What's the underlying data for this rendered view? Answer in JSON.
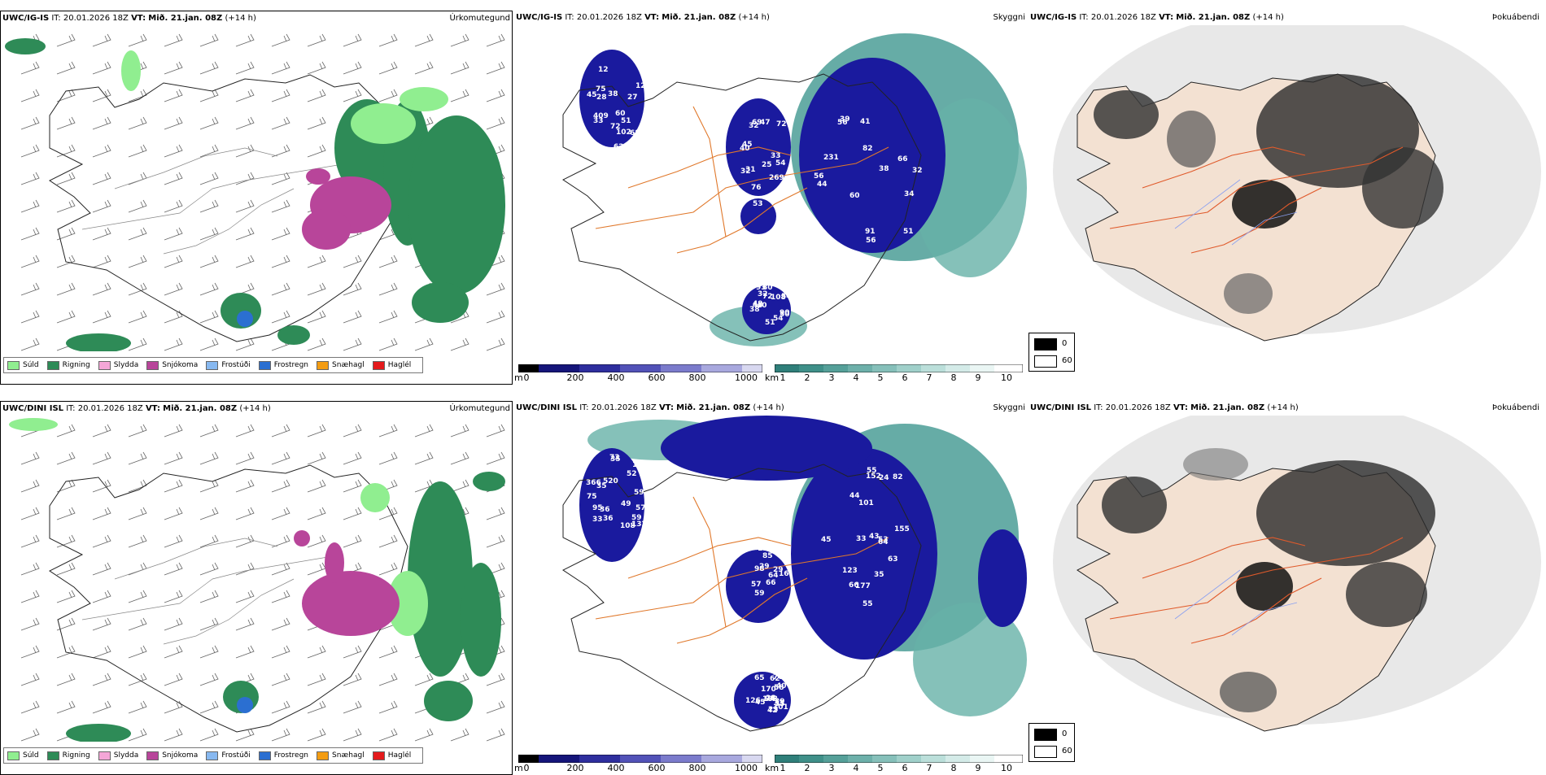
{
  "rows": [
    {
      "model": "UWC/IG-IS",
      "it_label": "IT:",
      "it_value": "20.01.2026 18Z",
      "vt_label": "VT:",
      "vt_value": "Mið. 21.jan. 08Z",
      "lead": "(+14 h)"
    },
    {
      "model": "UWC/DINI ISL",
      "it_label": "IT:",
      "it_value": "20.01.2026 18Z",
      "vt_label": "VT:",
      "vt_value": "Mið. 21.jan. 08Z",
      "lead": "(+14 h)"
    }
  ],
  "panel_names": {
    "precip": "Úrkomutegund",
    "cloud": "Skyggni",
    "fog": "Þokuábendi"
  },
  "precip_legend": [
    {
      "label": "Súld",
      "color": "#90ee90"
    },
    {
      "label": "Rigning",
      "color": "#2e8b57"
    },
    {
      "label": "Slydda",
      "color": "#f4a6d7"
    },
    {
      "label": "Snjókoma",
      "color": "#b8459a"
    },
    {
      "label": "Frostúði",
      "color": "#87b8f0"
    },
    {
      "label": "Frostregn",
      "color": "#2b6fd1"
    },
    {
      "label": "Snæhagl",
      "color": "#f39c12"
    },
    {
      "label": "Haglél",
      "color": "#e41a1c"
    }
  ],
  "ceiling_bar": {
    "unit": "m",
    "ticks": [
      "0",
      "200",
      "400",
      "600",
      "800",
      "1000"
    ]
  },
  "visibility_bar": {
    "unit": "km",
    "ticks": [
      "1",
      "2",
      "3",
      "4",
      "5",
      "6",
      "7",
      "8",
      "9",
      "10"
    ]
  },
  "fog_legend": {
    "low": "0",
    "high": "60"
  },
  "cloud_labels_top": [
    "231",
    "269",
    "409",
    "90",
    "56",
    "53",
    "38",
    "49",
    "41",
    "40",
    "60",
    "54",
    "34",
    "33",
    "33",
    "32",
    "51",
    "31",
    "28",
    "54",
    "60",
    "36",
    "62",
    "45",
    "39",
    "47",
    "51",
    "40",
    "32",
    "32",
    "27",
    "38",
    "44",
    "32",
    "72",
    "72",
    "91",
    "72",
    "128",
    "80",
    "82",
    "76",
    "102",
    "93",
    "56",
    "54",
    "75",
    "50",
    "56",
    "45",
    "68",
    "108",
    "66",
    "69",
    "12",
    "51",
    "38",
    "25",
    "45"
  ],
  "cloud_labels_bottom": [
    "152",
    "152",
    "132",
    "188",
    "123",
    "124",
    "59",
    "170",
    "177",
    "39",
    "49",
    "39",
    "63",
    "55",
    "33",
    "58",
    "45",
    "28",
    "36",
    "42",
    "64",
    "67",
    "36",
    "40",
    "43",
    "29",
    "35",
    "33",
    "35",
    "33",
    "366",
    "65",
    "66",
    "57",
    "52",
    "62",
    "55",
    "66",
    "75",
    "101",
    "155",
    "114",
    "109",
    "126",
    "82",
    "59",
    "57",
    "28",
    "44",
    "29",
    "59",
    "45",
    "53",
    "49",
    "73",
    "70",
    "101",
    "85",
    "108",
    "94",
    "24",
    "98",
    "35",
    "55",
    "33",
    "64",
    "95",
    "23",
    "55",
    "16",
    "520"
  ]
}
